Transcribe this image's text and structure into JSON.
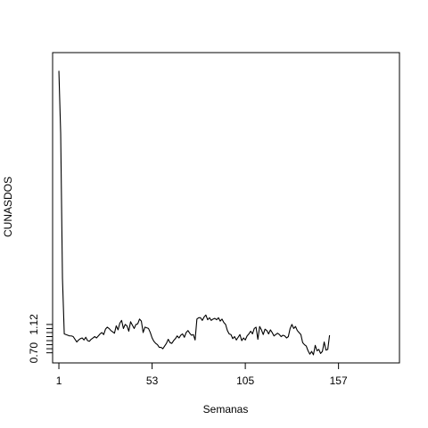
{
  "chart_data": {
    "type": "line",
    "title": "",
    "xlabel": "Semanas",
    "ylabel": "CUNASDOS",
    "xlim": [
      -2.5,
      191
    ],
    "ylim": [
      0.55,
      5.15
    ],
    "x_ticks": [
      1,
      53,
      105,
      157
    ],
    "y_ticks": [
      0.7,
      0.76,
      0.82,
      0.88,
      0.94,
      1.0,
      1.06,
      1.12
    ],
    "y_tick_labels": [
      "0.70",
      "",
      "",
      "",
      "",
      "",
      "",
      "1.12"
    ],
    "grid": false,
    "legend": "none",
    "line_color": "#000000",
    "x_start": 1,
    "values": [
      4.88,
      3.95,
      1.8,
      0.98,
      0.97,
      0.96,
      0.95,
      0.95,
      0.94,
      0.9,
      0.86,
      0.89,
      0.91,
      0.92,
      0.89,
      0.93,
      0.88,
      0.87,
      0.9,
      0.92,
      0.94,
      0.92,
      0.95,
      0.98,
      1.0,
      0.97,
      1.05,
      1.08,
      1.06,
      1.03,
      1.01,
      0.99,
      1.1,
      1.04,
      1.14,
      1.18,
      1.06,
      1.12,
      1.1,
      1.02,
      1.16,
      1.11,
      1.06,
      1.12,
      1.13,
      1.2,
      1.17,
      1.0,
      1.08,
      1.07,
      1.06,
      1.0,
      0.92,
      0.87,
      0.84,
      0.82,
      0.78,
      0.78,
      0.76,
      0.8,
      0.84,
      0.9,
      0.85,
      0.84,
      0.88,
      0.91,
      0.95,
      0.92,
      0.96,
      0.98,
      0.93,
      1.0,
      1.03,
      0.99,
      0.96,
      0.97,
      0.89,
      1.2,
      1.22,
      1.22,
      1.18,
      1.23,
      1.26,
      1.19,
      1.22,
      1.18,
      1.2,
      1.21,
      1.19,
      1.22,
      1.17,
      1.2,
      1.15,
      1.12,
      1.03,
      0.98,
      0.97,
      0.91,
      0.94,
      0.89,
      0.93,
      0.97,
      0.88,
      0.92,
      0.89,
      0.95,
      0.98,
      1.02,
      0.98,
      1.06,
      1.08,
      0.9,
      1.09,
      1.04,
      0.97,
      1.05,
      1.03,
      0.98,
      1.04,
      1.0,
      0.95,
      0.97,
      0.99,
      0.97,
      0.94,
      0.96,
      0.95,
      0.92,
      0.94,
      1.06,
      1.12,
      1.06,
      1.09,
      1.03,
      1.0,
      0.97,
      0.85,
      0.82,
      0.8,
      0.73,
      0.68,
      0.72,
      0.67,
      0.81,
      0.73,
      0.75,
      0.69,
      0.72,
      0.86,
      0.74,
      0.75,
      0.96
    ]
  }
}
